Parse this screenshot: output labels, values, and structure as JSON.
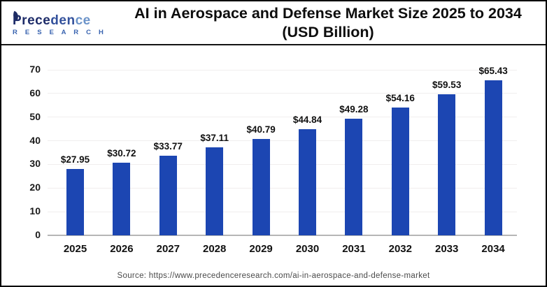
{
  "header": {
    "logo": {
      "name_part1": "Prece",
      "name_part2": "den",
      "name_part3": "ce",
      "subtitle": "R E S E A R C H"
    },
    "title_line1": "AI in Aerospace and Defense Market Size 2025 to 2034",
    "title_line2": "(USD Billion)"
  },
  "chart_data": {
    "type": "bar",
    "title": "AI in Aerospace and Defense Market Size 2025 to 2034 (USD Billion)",
    "categories": [
      "2025",
      "2026",
      "2027",
      "2028",
      "2029",
      "2030",
      "2031",
      "2032",
      "2033",
      "2034"
    ],
    "values": [
      27.95,
      30.72,
      33.77,
      37.11,
      40.79,
      44.84,
      49.28,
      54.16,
      59.53,
      65.43
    ],
    "value_labels": [
      "$27.95",
      "$30.72",
      "$33.77",
      "$37.11",
      "$40.79",
      "$44.84",
      "$49.28",
      "$54.16",
      "$59.53",
      "$65.43"
    ],
    "xlabel": "",
    "ylabel": "",
    "ylim": [
      0,
      70
    ],
    "yticks": [
      0,
      10,
      20,
      30,
      40,
      50,
      60,
      70
    ],
    "grid": true,
    "legend_position": "none",
    "bar_color": "#1c46b2",
    "label_color": "#111111"
  },
  "footer": {
    "source": "Source: https://www.precedenceresearch.com/ai-in-aerospace-and-defense-market"
  }
}
